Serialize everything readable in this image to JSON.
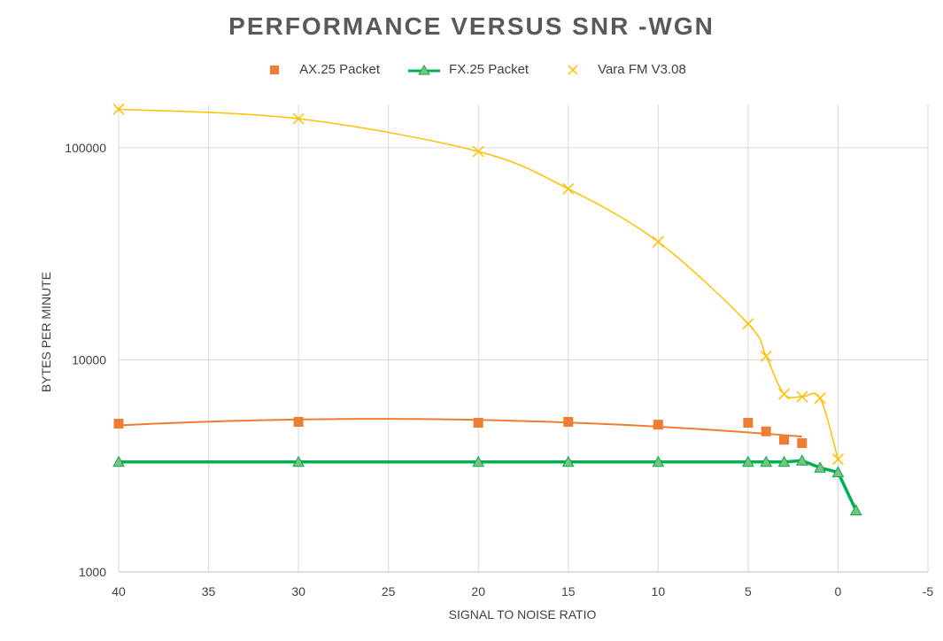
{
  "chart_data": {
    "type": "scatter",
    "title": "PERFORMANCE VERSUS SNR -WGN",
    "xlabel": "SIGNAL TO NOISE RATIO",
    "ylabel": "BYTES PER MINUTE",
    "x_reversed": true,
    "y_log": true,
    "xlim": [
      40,
      -5
    ],
    "ylim": [
      1000,
      160000
    ],
    "xticks": [
      40,
      35,
      30,
      25,
      20,
      15,
      10,
      5,
      0,
      -5
    ],
    "yticks": [
      1000,
      10000,
      100000
    ],
    "grid": true,
    "legend_position": "top",
    "series": [
      {
        "name": "AX.25 Packet",
        "color": "#ED7D31",
        "marker": "square",
        "trendline": "polynomial",
        "x": [
          40,
          30,
          20,
          15,
          10,
          5,
          4,
          3,
          2
        ],
        "y": [
          5000,
          5100,
          5050,
          5100,
          4950,
          5050,
          4600,
          4200,
          4050
        ]
      },
      {
        "name": "FX.25 Packet",
        "color": "#00B050",
        "marker": "triangle",
        "line": true,
        "x": [
          40,
          30,
          20,
          15,
          10,
          5,
          4,
          3,
          2,
          1,
          0,
          -1
        ],
        "y": [
          3300,
          3300,
          3300,
          3300,
          3300,
          3300,
          3300,
          3300,
          3350,
          3100,
          2950,
          1950
        ]
      },
      {
        "name": "Vara FM V3.08",
        "color": "#FFC000",
        "marker": "x",
        "trendline": "smooth",
        "x": [
          40,
          30,
          20,
          15,
          10,
          5,
          4,
          3,
          2,
          1,
          0
        ],
        "y": [
          152000,
          137000,
          96000,
          64000,
          36000,
          14800,
          10400,
          6900,
          6700,
          6600,
          3400
        ]
      }
    ]
  }
}
